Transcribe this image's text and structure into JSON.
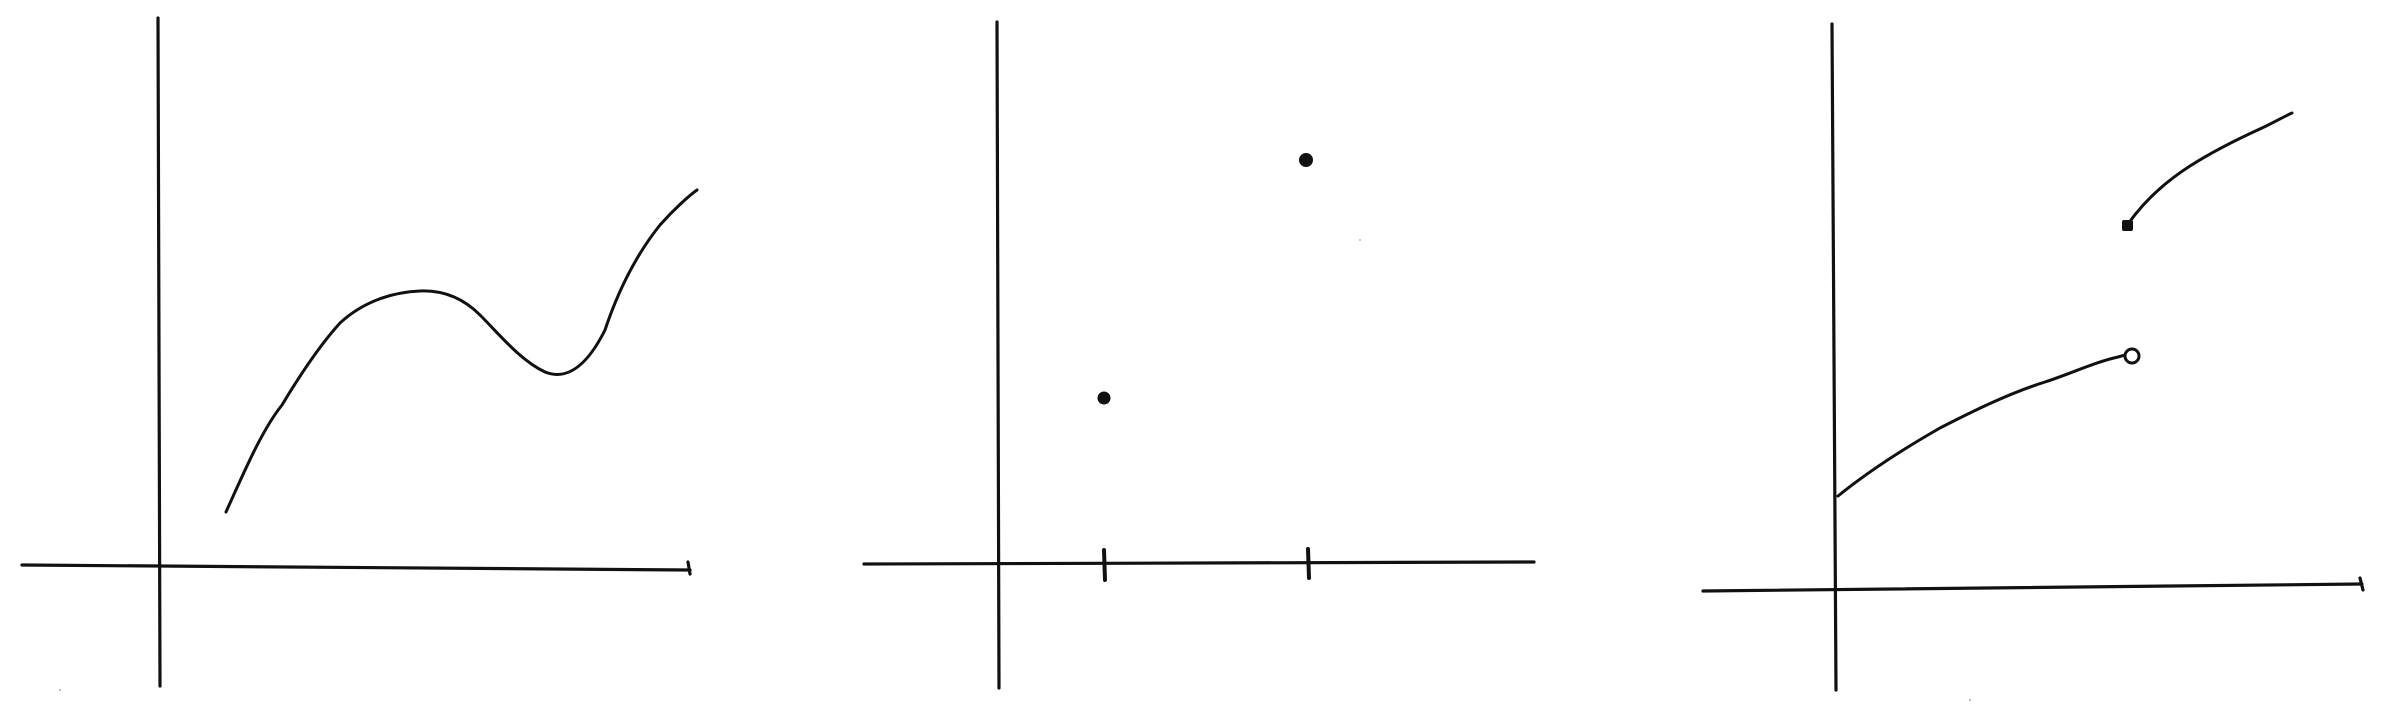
{
  "sheet": {
    "background": "#ffffff",
    "ink": "#111111"
  },
  "graphs": [
    {
      "id": "graph-1",
      "description_kind": "continuous-curve",
      "features": [
        "rises",
        "local-maximum",
        "local-minimum",
        "rises"
      ]
    },
    {
      "id": "graph-2",
      "description_kind": "isolated-points",
      "x_tick_count": 2,
      "point_count": 2
    },
    {
      "id": "graph-3",
      "description_kind": "jump-discontinuity",
      "segments": [
        {
          "end_marker": "open-circle"
        },
        {
          "start_marker": "closed-dot"
        }
      ]
    }
  ]
}
